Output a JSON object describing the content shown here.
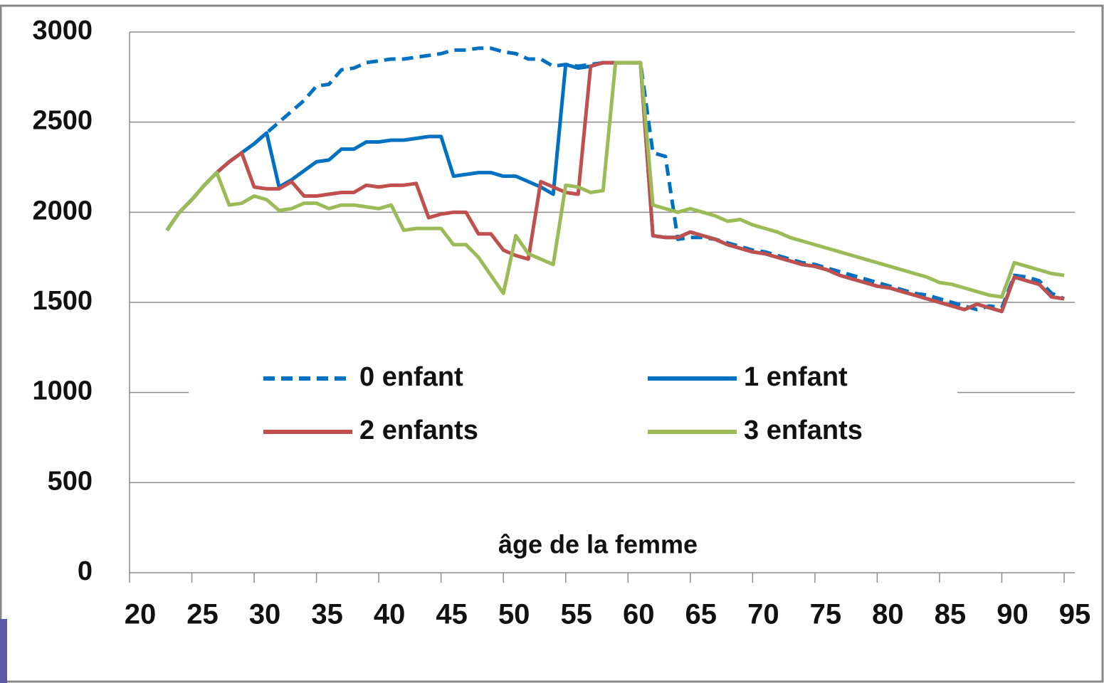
{
  "chart_data": {
    "type": "line",
    "x_label": "âge de la femme",
    "x": [
      23,
      24,
      25,
      26,
      27,
      28,
      29,
      30,
      31,
      32,
      33,
      34,
      35,
      36,
      37,
      38,
      39,
      40,
      41,
      42,
      43,
      44,
      45,
      46,
      47,
      48,
      49,
      50,
      51,
      52,
      53,
      54,
      55,
      56,
      57,
      58,
      59,
      60,
      61,
      62,
      63,
      64,
      65,
      66,
      67,
      68,
      69,
      70,
      71,
      72,
      73,
      74,
      75,
      76,
      77,
      78,
      79,
      80,
      81,
      82,
      83,
      84,
      85,
      86,
      87,
      88,
      89,
      90,
      91,
      92,
      93,
      94,
      95
    ],
    "series": [
      {
        "name": "0 enfant",
        "color": "#0070c0",
        "dashed": true,
        "values": [
          1900,
          2000,
          2070,
          2150,
          2220,
          2280,
          2330,
          2380,
          2440,
          2500,
          2560,
          2620,
          2700,
          2710,
          2790,
          2800,
          2830,
          2840,
          2850,
          2850,
          2860,
          2870,
          2880,
          2900,
          2900,
          2910,
          2910,
          2890,
          2880,
          2850,
          2850,
          2810,
          2820,
          2810,
          2820,
          2830,
          2830,
          2830,
          2830,
          2330,
          2310,
          1850,
          1860,
          1860,
          1850,
          1830,
          1810,
          1790,
          1780,
          1760,
          1740,
          1720,
          1710,
          1690,
          1670,
          1650,
          1630,
          1610,
          1590,
          1570,
          1550,
          1540,
          1520,
          1500,
          1480,
          1460,
          1480,
          1470,
          1650,
          1640,
          1620,
          1550,
          1520
        ]
      },
      {
        "name": "1 enfant",
        "color": "#0070c0",
        "dashed": false,
        "values": [
          1900,
          2000,
          2070,
          2150,
          2220,
          2280,
          2330,
          2380,
          2440,
          2140,
          2180,
          2230,
          2280,
          2290,
          2350,
          2350,
          2390,
          2390,
          2400,
          2400,
          2410,
          2420,
          2420,
          2200,
          2210,
          2220,
          2220,
          2200,
          2200,
          2170,
          2140,
          2100,
          2820,
          2800,
          2810,
          2830,
          2830,
          2830,
          2830,
          1870,
          1860,
          1860,
          1890,
          1870,
          1850,
          1820,
          1800,
          1780,
          1770,
          1750,
          1730,
          1710,
          1700,
          1680,
          1650,
          1630,
          1610,
          1590,
          1580,
          1560,
          1540,
          1520,
          1500,
          1480,
          1460,
          1490,
          1470,
          1450,
          1640,
          1620,
          1600,
          1530,
          1520
        ]
      },
      {
        "name": "2 enfants",
        "color": "#c0504d",
        "dashed": false,
        "values": [
          1900,
          2000,
          2070,
          2150,
          2220,
          2280,
          2330,
          2140,
          2130,
          2130,
          2170,
          2090,
          2090,
          2100,
          2110,
          2110,
          2150,
          2140,
          2150,
          2150,
          2160,
          1970,
          1990,
          2000,
          2000,
          1880,
          1880,
          1790,
          1760,
          1740,
          2170,
          2140,
          2110,
          2100,
          2810,
          2830,
          2830,
          2830,
          2830,
          1870,
          1860,
          1860,
          1890,
          1870,
          1850,
          1820,
          1800,
          1780,
          1770,
          1750,
          1730,
          1710,
          1700,
          1680,
          1650,
          1630,
          1610,
          1590,
          1580,
          1560,
          1540,
          1520,
          1500,
          1480,
          1460,
          1490,
          1470,
          1450,
          1640,
          1620,
          1600,
          1530,
          1520
        ]
      },
      {
        "name": "3 enfants",
        "color": "#9bbb59",
        "dashed": false,
        "values": [
          1900,
          2000,
          2070,
          2150,
          2220,
          2040,
          2050,
          2090,
          2070,
          2010,
          2020,
          2050,
          2050,
          2020,
          2040,
          2040,
          2030,
          2020,
          2040,
          1900,
          1910,
          1910,
          1910,
          1820,
          1820,
          1750,
          1650,
          1550,
          1870,
          1770,
          1740,
          1710,
          2150,
          2140,
          2110,
          2120,
          2830,
          2830,
          2830,
          2040,
          2020,
          2000,
          2020,
          2000,
          1980,
          1950,
          1960,
          1930,
          1910,
          1890,
          1860,
          1840,
          1820,
          1800,
          1780,
          1760,
          1740,
          1720,
          1700,
          1680,
          1660,
          1640,
          1610,
          1600,
          1580,
          1560,
          1540,
          1530,
          1720,
          1700,
          1680,
          1660,
          1650
        ]
      }
    ],
    "xlim": [
      20,
      95
    ],
    "xticks": [
      20,
      25,
      30,
      35,
      40,
      45,
      50,
      55,
      60,
      65,
      70,
      75,
      80,
      85,
      90,
      95
    ],
    "ylim": [
      0,
      3000
    ],
    "yticks": [
      0,
      500,
      1000,
      1500,
      2000,
      2500,
      3000
    ],
    "grid": true
  }
}
